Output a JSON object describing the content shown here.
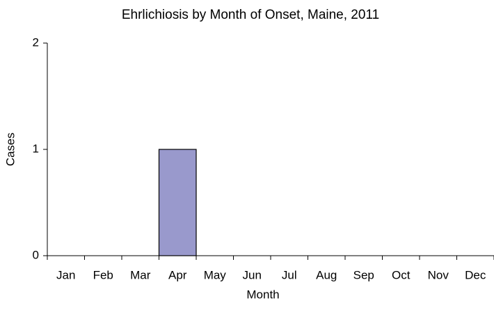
{
  "chart_data": {
    "type": "bar",
    "title": "Ehrlichiosis by Month of Onset, Maine, 2011",
    "x_label": "Month",
    "y_label": "Cases",
    "categories": [
      "Jan",
      "Feb",
      "Mar",
      "Apr",
      "May",
      "Jun",
      "Jul",
      "Aug",
      "Sep",
      "Oct",
      "Nov",
      "Dec"
    ],
    "values": [
      0,
      0,
      0,
      1,
      0,
      0,
      0,
      0,
      0,
      0,
      0,
      0
    ],
    "color": "#9999cc",
    "ylim": [
      0,
      2
    ],
    "yticks": [
      0,
      1,
      2
    ],
    "grid": false
  }
}
